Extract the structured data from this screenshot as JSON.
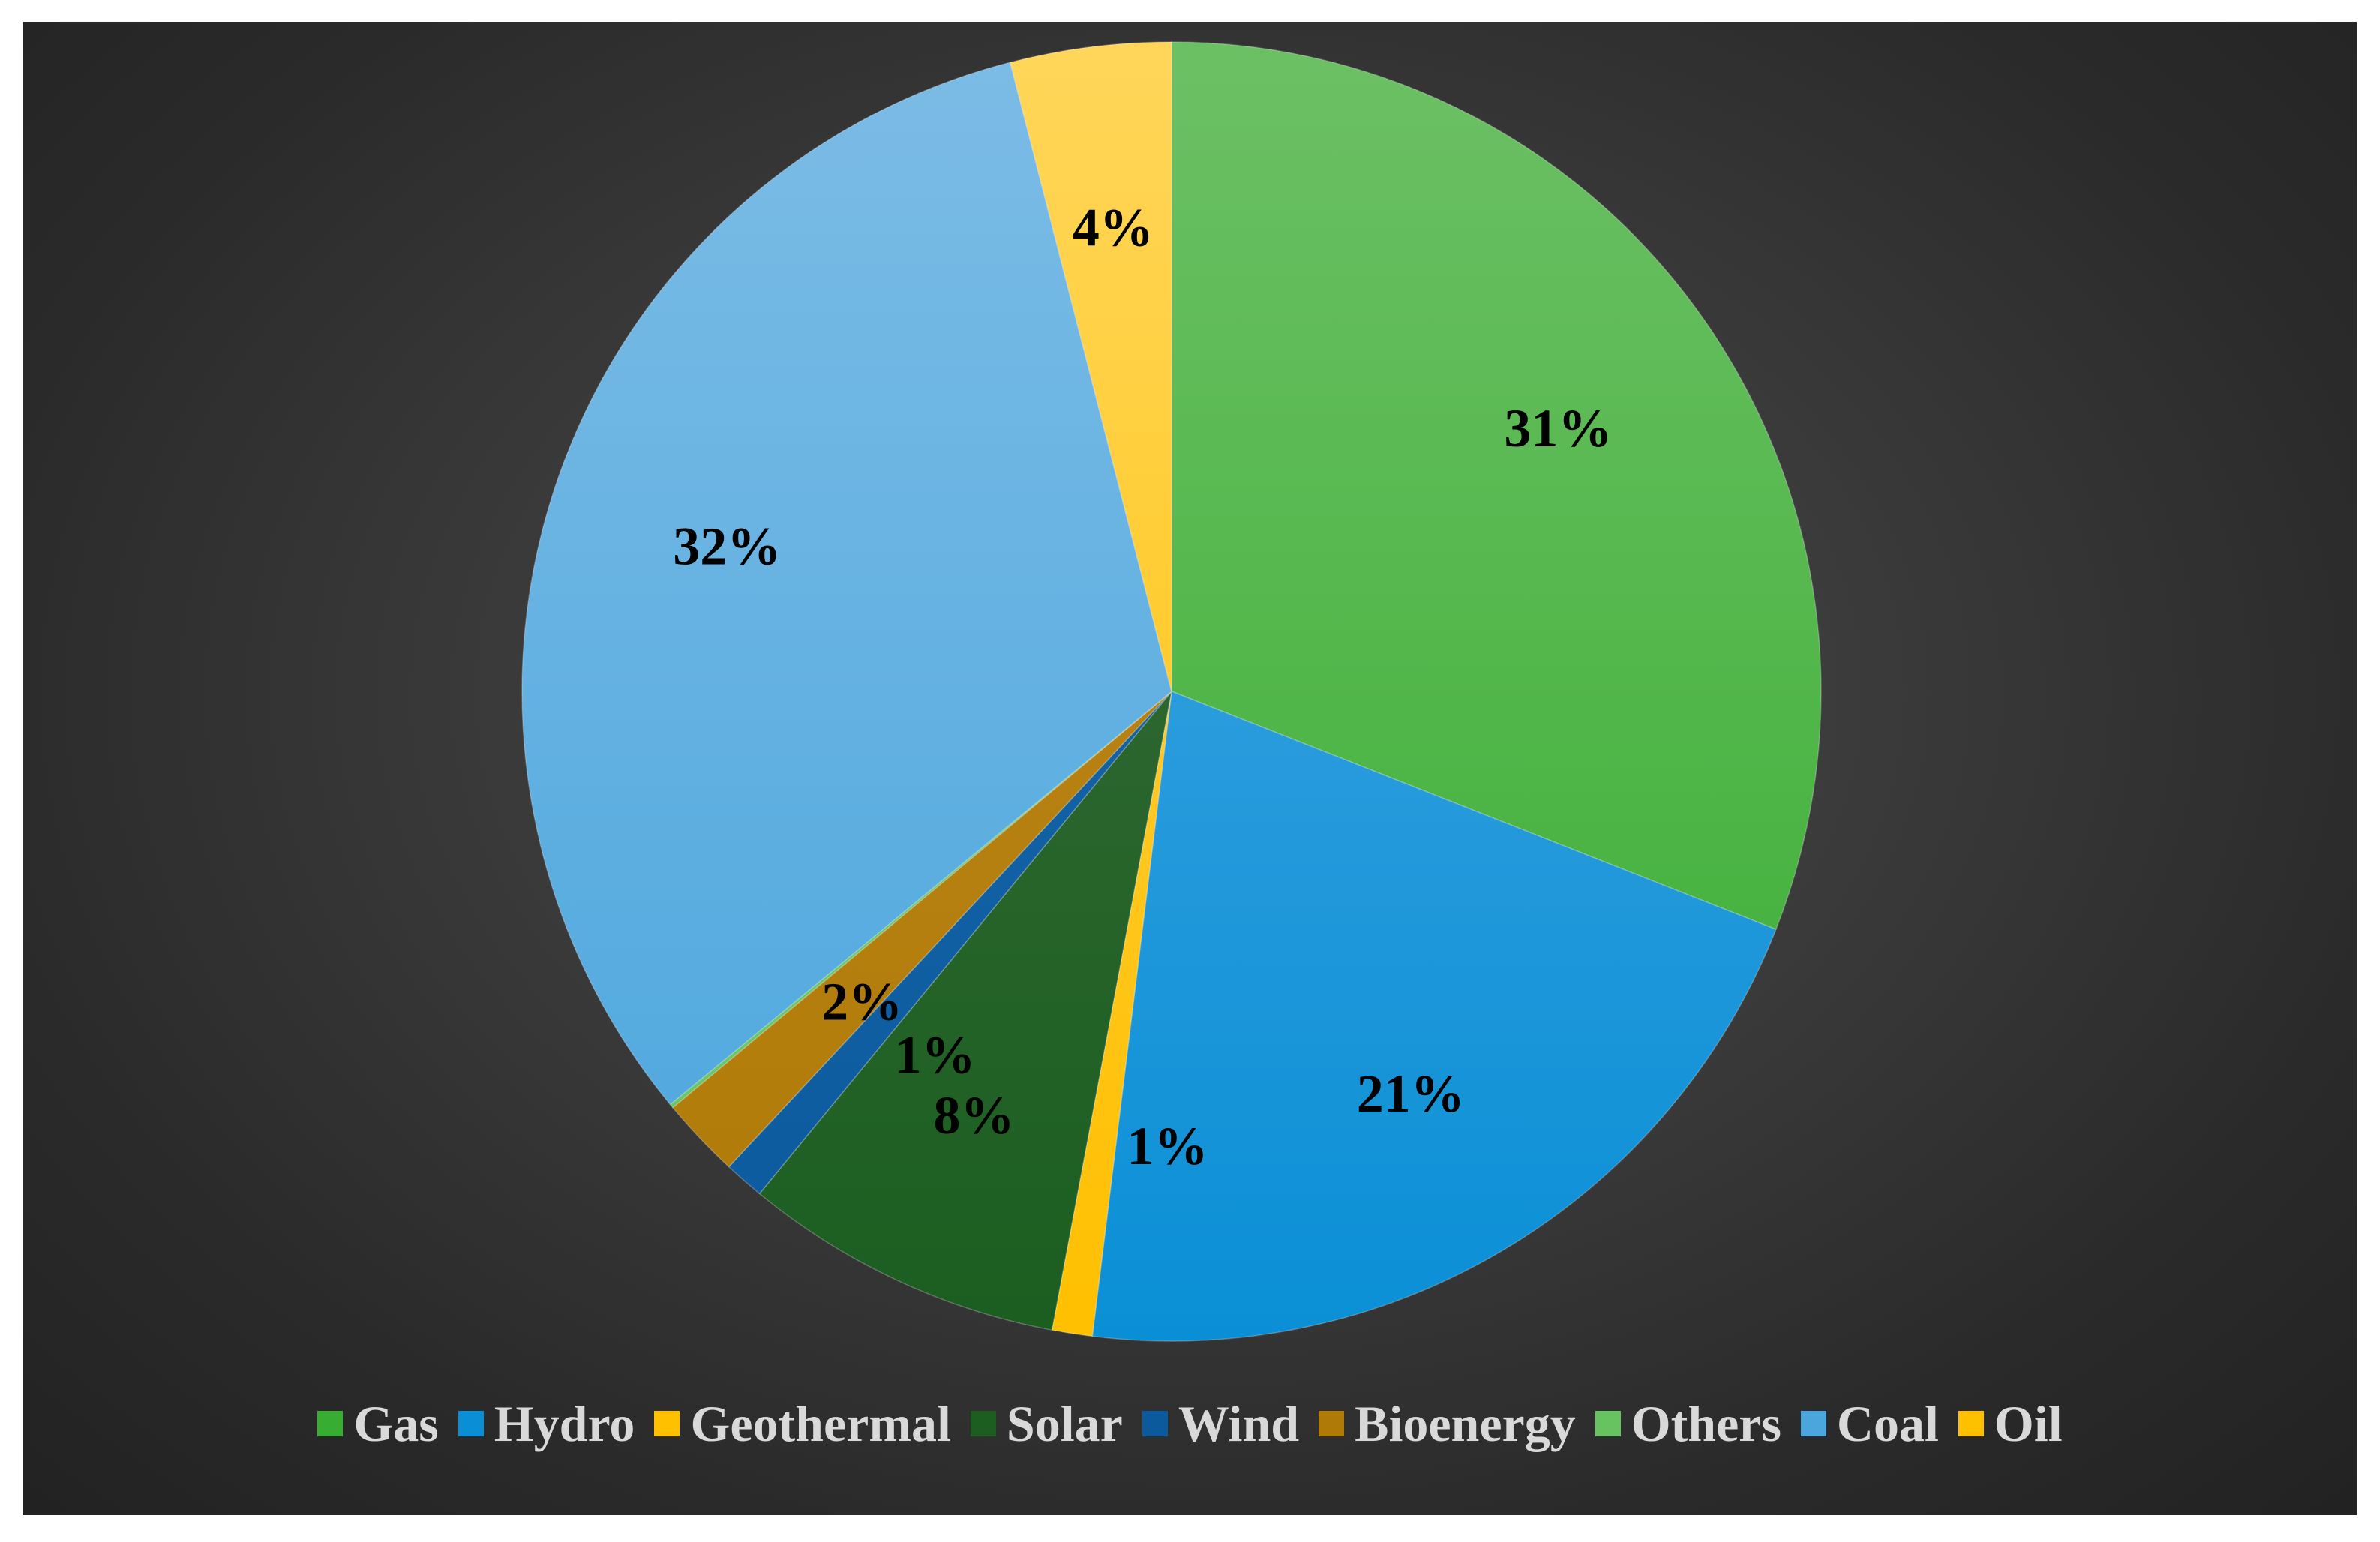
{
  "chart_data": {
    "type": "pie",
    "title": "",
    "start_angle_deg": 0,
    "direction": "clockwise",
    "legend_position": "bottom",
    "slices": [
      {
        "name": "Gas",
        "value": 31,
        "label": "31%",
        "color": "#37ad31",
        "gradient_top": "#6cc064"
      },
      {
        "name": "Hydro",
        "value": 21,
        "label": "21%",
        "color": "#0a8fd6",
        "gradient_top": "#4aa9e3"
      },
      {
        "name": "Geothermal",
        "value": 1,
        "label": "1%",
        "color": "#ffc000",
        "gradient_top": "#ffd04d"
      },
      {
        "name": "Solar",
        "value": 8,
        "label": "8%",
        "color": "#1b5e20",
        "gradient_top": "#3b6e3c"
      },
      {
        "name": "Wind",
        "value": 1,
        "label": "1%",
        "color": "#0b5a9e",
        "gradient_top": "#1d6aad"
      },
      {
        "name": "Bioenergy",
        "value": 2,
        "label": "2%",
        "color": "#b07a07",
        "gradient_top": "#c08a20"
      },
      {
        "name": "Others",
        "value": 0.1,
        "label": "",
        "color": "#66c35f",
        "gradient_top": "#7fd078"
      },
      {
        "name": "Coal",
        "value": 32,
        "label": "32%",
        "color": "#4aa6dd",
        "gradient_top": "#7cbce6"
      },
      {
        "name": "Oil",
        "value": 4,
        "label": "4%",
        "color": "#ffc000",
        "gradient_top": "#ffd65a"
      }
    ]
  }
}
